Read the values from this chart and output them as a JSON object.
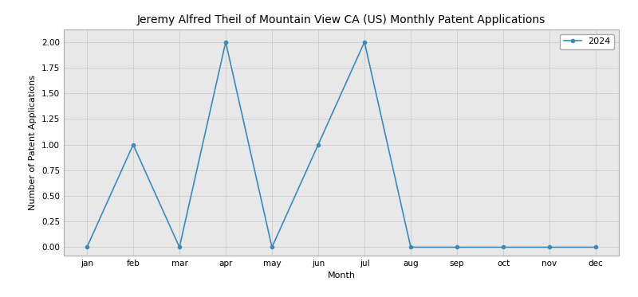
{
  "title": "Jeremy Alfred Theil of Mountain View CA (US) Monthly Patent Applications",
  "xlabel": "Month",
  "ylabel": "Number of Patent Applications",
  "months": [
    "jan",
    "feb",
    "mar",
    "apr",
    "may",
    "jun",
    "jul",
    "aug",
    "sep",
    "oct",
    "nov",
    "dec"
  ],
  "series": {
    "2024": [
      0,
      1,
      0,
      2,
      0,
      1,
      2,
      0,
      0,
      0,
      0,
      0
    ]
  },
  "line_color": "#3a8abf",
  "marker": "o",
  "marker_size": 3,
  "ylim": [
    -0.08,
    2.12
  ],
  "xlim": [
    -0.5,
    11.5
  ],
  "legend_label": "2024",
  "yticks": [
    0.0,
    0.25,
    0.5,
    0.75,
    1.0,
    1.25,
    1.5,
    1.75,
    2.0
  ],
  "grid_color": "#cccccc",
  "bg_color": "#e8e8e8",
  "title_fontsize": 10,
  "axis_label_fontsize": 8,
  "tick_fontsize": 7.5,
  "legend_fontsize": 8,
  "linewidth": 1.2
}
